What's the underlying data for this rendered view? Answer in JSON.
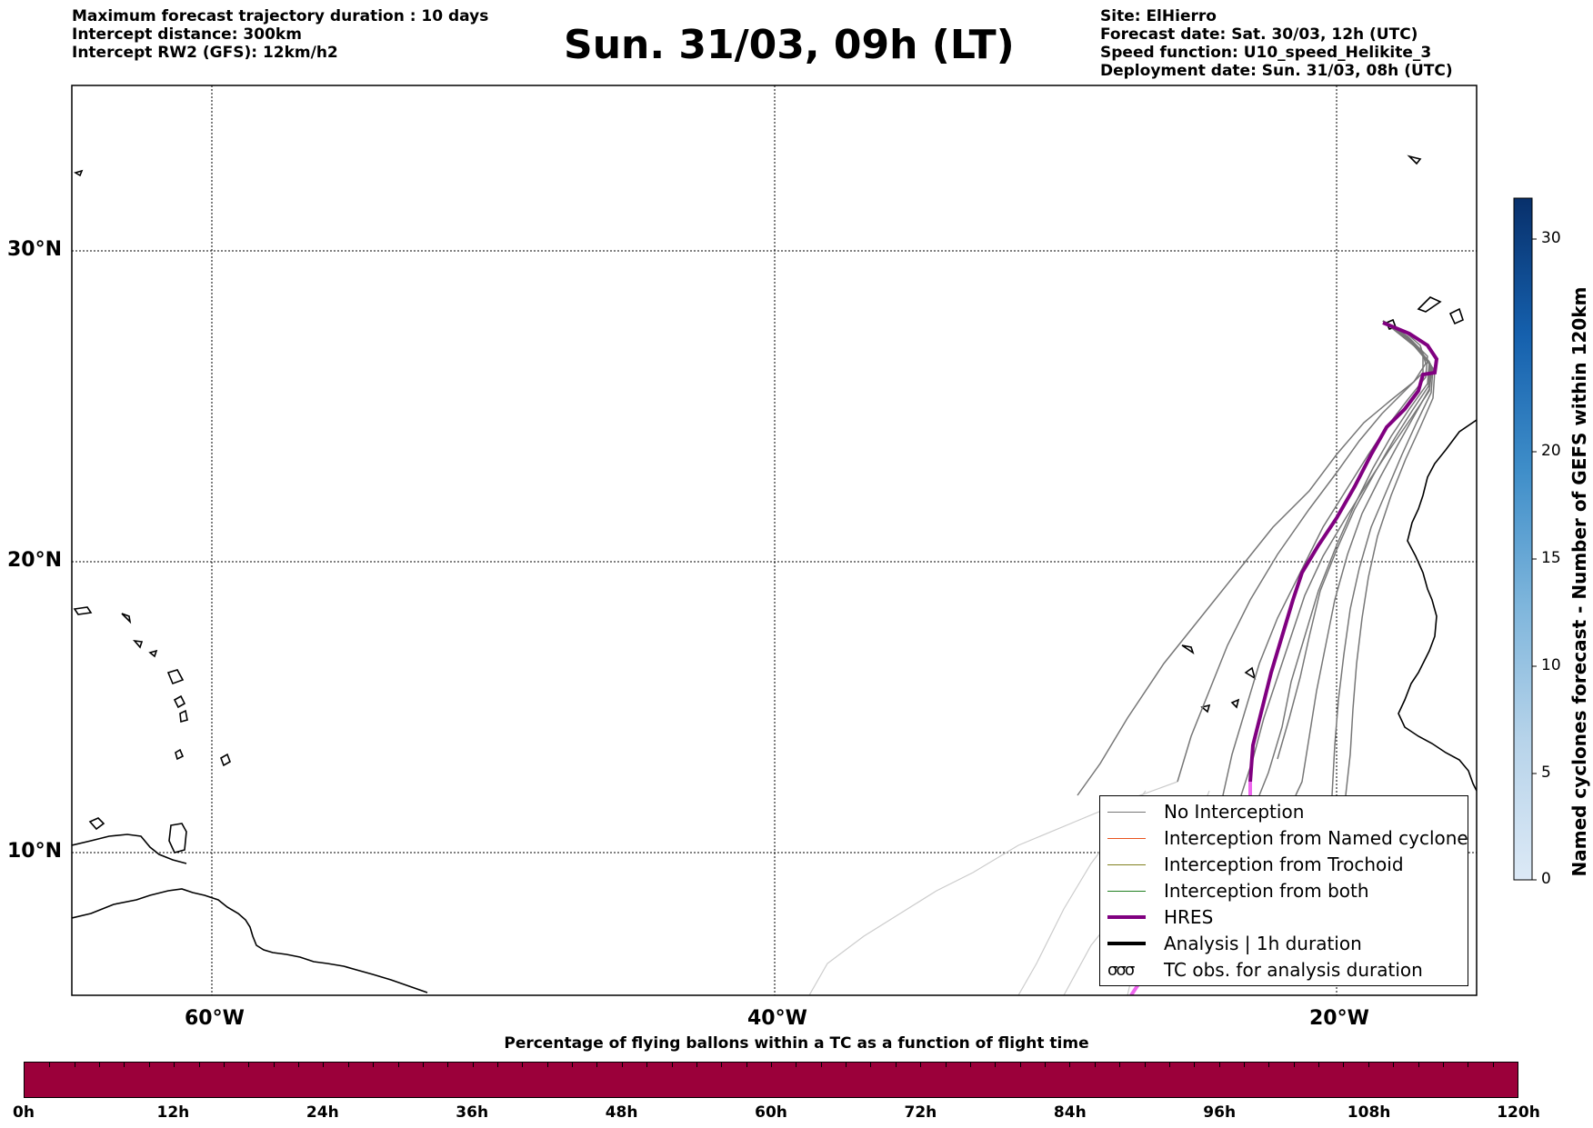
{
  "header": {
    "left_lines": [
      "Maximum forecast trajectory duration : 10 days",
      "Intercept distance: 300km",
      "Intercept RW2 (GFS):  12km/h2"
    ],
    "title": "Sun. 31/03, 09h (LT)",
    "right_lines": [
      "Site: ElHierro",
      "Forecast date: Sat. 30/03, 12h (UTC)",
      "Speed function: U10_speed_Helikite_3",
      "Deployment date: Sun. 31/03, 08h (UTC)"
    ]
  },
  "map": {
    "lon_labels": [
      "60°W",
      "40°W",
      "20°W"
    ],
    "lat_labels": [
      "30°N",
      "20°N",
      "10°N"
    ],
    "colors": {
      "no_interception": "#777777",
      "named_cyclone": "#e8541e",
      "trochoid": "#808020",
      "both": "#208020",
      "hres": "#800080",
      "hres_tail": "#ee66ee",
      "faded": "#cccccc"
    }
  },
  "legend": {
    "items": [
      {
        "label": "No Interception",
        "color": "#777777",
        "style": "thin"
      },
      {
        "label": "Interception from Named cyclone",
        "color": "#e8541e",
        "style": "thin"
      },
      {
        "label": "Interception from Trochoid",
        "color": "#808020",
        "style": "thin"
      },
      {
        "label": "Interception from both",
        "color": "#208020",
        "style": "thin"
      },
      {
        "label": "HRES",
        "color": "#800080",
        "style": "thick"
      },
      {
        "label": "Analysis | 1h duration",
        "color": "#000000",
        "style": "thick"
      },
      {
        "label": "TC obs. for analysis duration",
        "color": "#000000",
        "style": "symbol",
        "symbol": "σσσ"
      }
    ]
  },
  "colorbar": {
    "title": "Named cyclones forecast - Number of GEFS within 120km",
    "ticks": [
      "0",
      "5",
      "10",
      "15",
      "20",
      "30"
    ]
  },
  "timebar": {
    "title": "Percentage of flying ballons within a TC as a function of flight time",
    "ticks": [
      "0h",
      "12h",
      "24h",
      "36h",
      "48h",
      "60h",
      "72h",
      "84h",
      "96h",
      "108h",
      "120h"
    ],
    "fill_color": "#9b003a"
  }
}
